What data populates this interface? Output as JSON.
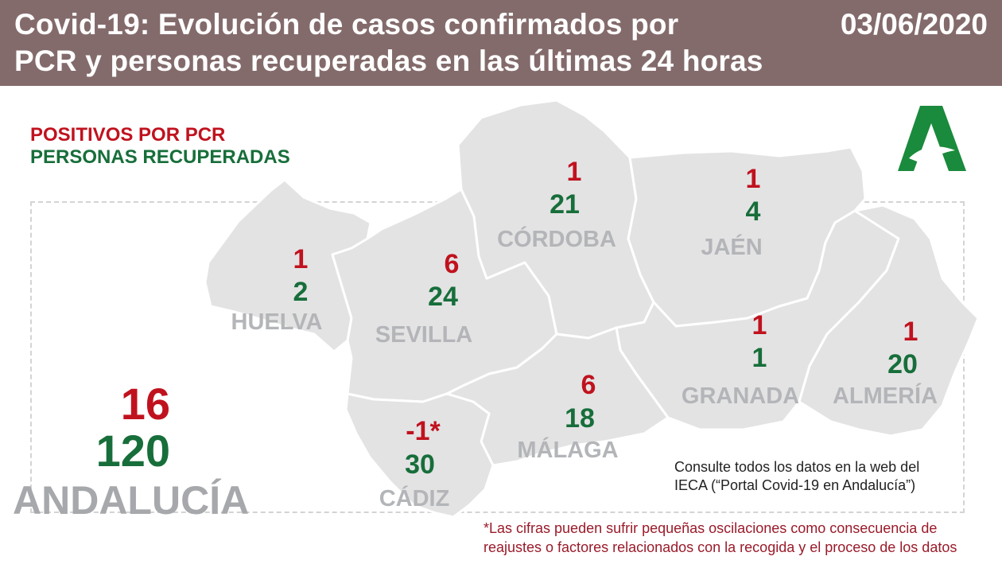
{
  "header": {
    "title_line1": "Covid-19: Evolución de casos confirmados por",
    "title_line2": "PCR y personas recuperadas en las últimas 24 horas",
    "date": "03/06/2020",
    "background": "#846b6b"
  },
  "legend": {
    "positives_label": "POSITIVOS POR PCR",
    "recovered_label": "PERSONAS RECUPERADAS",
    "positives_color": "#c0121e",
    "recovered_color": "#176e3a"
  },
  "logo": {
    "icon": "junta-de-andalucia-logo",
    "color": "#1a8a3c"
  },
  "provinces": [
    {
      "name": "HUELVA",
      "positives": "1",
      "recovered": "2"
    },
    {
      "name": "SEVILLA",
      "positives": "6",
      "recovered": "24"
    },
    {
      "name": "CÓRDOBA",
      "positives": "1",
      "recovered": "21"
    },
    {
      "name": "JAÉN",
      "positives": "1",
      "recovered": "4"
    },
    {
      "name": "GRANADA",
      "positives": "1",
      "recovered": "1"
    },
    {
      "name": "ALMERÍA",
      "positives": "1",
      "recovered": "20"
    },
    {
      "name": "MÁLAGA",
      "positives": "6",
      "recovered": "18"
    },
    {
      "name": "CÁDIZ",
      "positives": "-1*",
      "recovered": "30"
    }
  ],
  "region": {
    "name": "ANDALUCÍA",
    "positives": "16",
    "recovered": "120"
  },
  "source_note": {
    "line1": "Consulte todos los datos en la web del",
    "line2": "IECA (“Portal Covid-19 en Andalucía”)"
  },
  "footnote": {
    "line1": "*Las cifras pueden sufrir pequeñas oscilaciones como consecuencia de",
    "line2": "reajustes o factores relacionados con la recogida y el proceso de los datos"
  }
}
